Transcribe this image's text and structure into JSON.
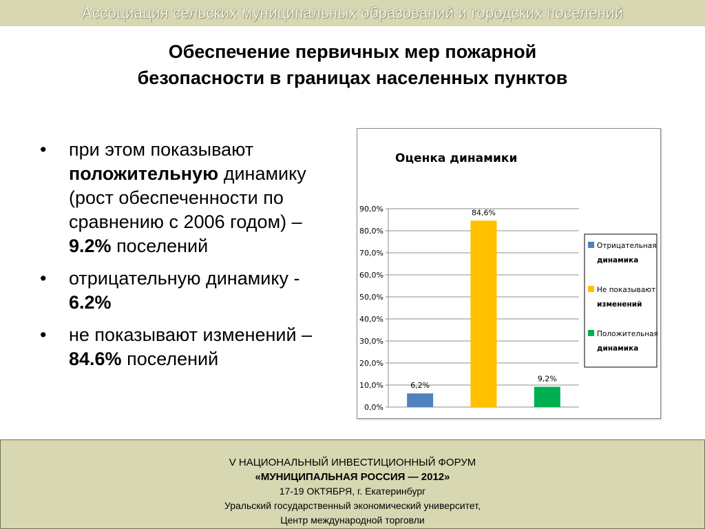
{
  "header": {
    "association": "Ассоциация сельских муниципальных образований и городских поселений"
  },
  "title": {
    "line1": "Обеспечение первичных мер пожарной",
    "line2": "безопасности в границах населенных пунктов"
  },
  "bullets": [
    {
      "marker": "•",
      "parts": [
        "при этом показывают",
        "положительную",
        "динамику (рост обеспеченности по сравнению с 2006 годом) –",
        "9.2%",
        "поселений"
      ]
    },
    {
      "marker": "•",
      "parts": [
        "отрицательную динамику  -",
        "6.2%"
      ]
    },
    {
      "marker": "•",
      "parts": [
        "не показывают изменений –",
        "84.6%",
        "поселений"
      ]
    }
  ],
  "chart_data": {
    "type": "bar",
    "title": "Оценка динамики",
    "categories": [
      "Отрицательная динамика",
      "Не показывают изменений",
      "Положительная динамика"
    ],
    "values": [
      6.2,
      84.6,
      9.2
    ],
    "data_labels": [
      "6,2%",
      "84,6%",
      "9,2%"
    ],
    "colors": [
      "#4f81bd",
      "#ffc000",
      "#00b050"
    ],
    "ylim": [
      0,
      90
    ],
    "yticks": [
      "0,0%",
      "10,0%",
      "20,0%",
      "30,0%",
      "40,0%",
      "50,0%",
      "60,0%",
      "70,0%",
      "80,0%",
      "90,0%"
    ],
    "grid": true,
    "legend": {
      "placement": "right",
      "entries": [
        {
          "line1": "Отрицательная",
          "line2": "динамика"
        },
        {
          "line1": "Не показывают",
          "line2": "изменений"
        },
        {
          "line1": "Положительная",
          "line2": "динамика"
        }
      ]
    }
  },
  "footer": {
    "line1": "V НАЦИОНАЛЬНЫЙ ИНВЕСТИЦИОННЫЙ ФОРУМ",
    "line2": "«МУНИЦИПАЛЬНАЯ РОССИЯ — 2012»",
    "line3": "17-19 ОКТЯБРЯ, г. Екатеринбург",
    "line4": "Уральский государственный экономический университет,",
    "line5": "Центр международной торговли"
  }
}
